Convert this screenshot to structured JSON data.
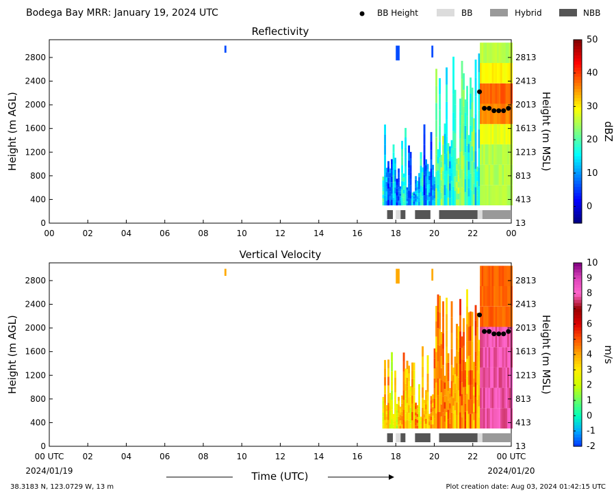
{
  "header": {
    "title": "Bodega Bay MRR:  January 19, 2024 UTC",
    "legend": [
      {
        "label": "BB Height",
        "kind": "dot",
        "color": "#000000"
      },
      {
        "label": "BB",
        "kind": "patch",
        "color": "#dcdcdc"
      },
      {
        "label": "Hybrid",
        "kind": "patch",
        "color": "#999999"
      },
      {
        "label": "NBB",
        "kind": "patch",
        "color": "#555555"
      }
    ]
  },
  "footer": {
    "location": "38.3183 N, 123.0729 W, 13 m",
    "created": "Plot creation date: Aug 03, 2024 01:42:15 UTC",
    "xlabel": "Time (UTC)",
    "start_date": "2024/01/19",
    "end_date": "2024/01/20"
  },
  "chart_data": [
    {
      "type": "heatmap",
      "title": "Reflectivity",
      "ylabel": "Height (m AGL)",
      "ylabel_right": "Height (m MSL)",
      "x_ticks": [
        "00",
        "02",
        "04",
        "06",
        "08",
        "10",
        "12",
        "14",
        "16",
        "18",
        "20",
        "22",
        "00"
      ],
      "xlim": [
        0,
        24
      ],
      "y_ticks": [
        "0",
        "400",
        "800",
        "1200",
        "1600",
        "2000",
        "2400",
        "2800"
      ],
      "y_ticks_right": [
        "13",
        "413",
        "813",
        "1213",
        "1613",
        "2013",
        "2413",
        "2813"
      ],
      "ylim": [
        0,
        3100
      ],
      "colorbar": {
        "label": "dBZ",
        "range": [
          -5,
          50
        ],
        "ticks": [
          "0",
          "10",
          "20",
          "30",
          "40",
          "50"
        ],
        "colors": [
          "#00007f",
          "#0000ff",
          "#007fff",
          "#00ffff",
          "#7fff7f",
          "#ffff00",
          "#ff7f00",
          "#ff0000",
          "#7f0000"
        ]
      },
      "bb_height": [
        {
          "x": 22.35,
          "y": 2220
        },
        {
          "x": 22.6,
          "y": 1940
        },
        {
          "x": 22.85,
          "y": 1940
        },
        {
          "x": 23.1,
          "y": 1900
        },
        {
          "x": 23.35,
          "y": 1900
        },
        {
          "x": 23.6,
          "y": 1900
        },
        {
          "x": 23.85,
          "y": 1940
        }
      ],
      "bb_type": [
        {
          "start": 17.55,
          "end": 17.85,
          "type": "NBB"
        },
        {
          "start": 18.0,
          "end": 18.25,
          "type": "BB"
        },
        {
          "start": 18.25,
          "end": 18.5,
          "type": "NBB"
        },
        {
          "start": 19.0,
          "end": 19.8,
          "type": "NBB"
        },
        {
          "start": 20.25,
          "end": 22.25,
          "type": "NBB"
        },
        {
          "start": 22.25,
          "end": 22.5,
          "type": "BB"
        },
        {
          "start": 22.5,
          "end": 24.0,
          "type": "Hybrid"
        }
      ]
    },
    {
      "type": "heatmap",
      "title": "Vertical Velocity",
      "ylabel": "Height (m AGL)",
      "ylabel_right": "Height (m MSL)",
      "x_ticks": [
        "00 UTC",
        "02",
        "04",
        "06",
        "08",
        "10",
        "12",
        "14",
        "16",
        "18",
        "20",
        "22",
        "00 UTC"
      ],
      "xlim": [
        0,
        24
      ],
      "y_ticks": [
        "0",
        "400",
        "800",
        "1200",
        "1600",
        "2000",
        "2400",
        "2800"
      ],
      "y_ticks_right": [
        "13",
        "413",
        "813",
        "1213",
        "1613",
        "2013",
        "2413",
        "2813"
      ],
      "ylim": [
        0,
        3100
      ],
      "colorbar": {
        "label": "m/s",
        "range": [
          -2,
          10
        ],
        "ticks": [
          "-2",
          "-1",
          "0",
          "1",
          "2",
          "3",
          "4",
          "5",
          "6",
          "7",
          "8",
          "9",
          "10"
        ],
        "colors": [
          "#0033ff",
          "#00aaff",
          "#00ffbb",
          "#66ff66",
          "#ccff00",
          "#ffee00",
          "#ffaa00",
          "#ff5500",
          "#dd0000",
          "#990000",
          "#ff66cc",
          "#dd44bb",
          "#800080"
        ]
      },
      "bb_height": [
        {
          "x": 22.35,
          "y": 2220
        },
        {
          "x": 22.6,
          "y": 1940
        },
        {
          "x": 22.85,
          "y": 1940
        },
        {
          "x": 23.1,
          "y": 1900
        },
        {
          "x": 23.35,
          "y": 1900
        },
        {
          "x": 23.6,
          "y": 1900
        },
        {
          "x": 23.85,
          "y": 1940
        }
      ],
      "bb_type": [
        {
          "start": 17.55,
          "end": 17.85,
          "type": "NBB"
        },
        {
          "start": 18.0,
          "end": 18.25,
          "type": "BB"
        },
        {
          "start": 18.25,
          "end": 18.5,
          "type": "NBB"
        },
        {
          "start": 19.0,
          "end": 19.8,
          "type": "NBB"
        },
        {
          "start": 20.25,
          "end": 22.25,
          "type": "NBB"
        },
        {
          "start": 22.25,
          "end": 22.5,
          "type": "BB"
        },
        {
          "start": 22.5,
          "end": 24.0,
          "type": "Hybrid"
        }
      ]
    }
  ]
}
